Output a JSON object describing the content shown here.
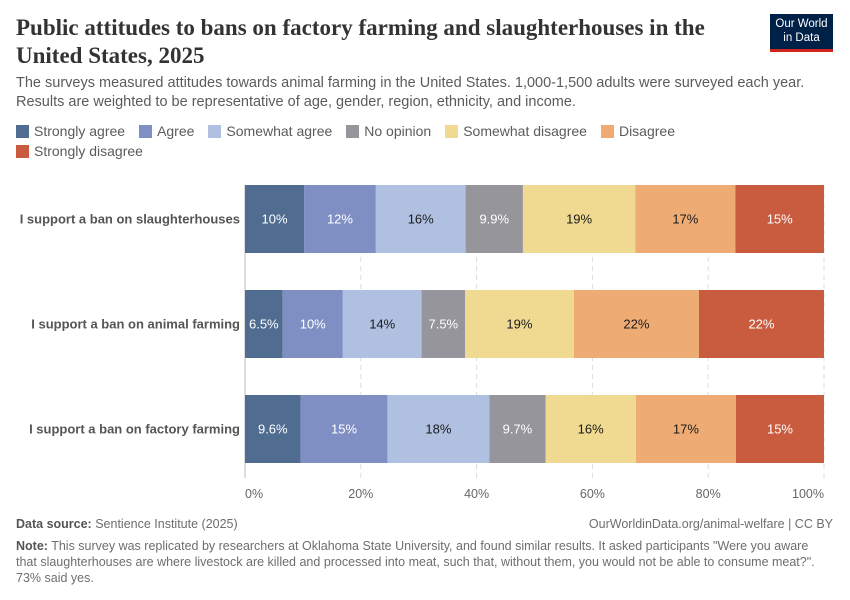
{
  "title": "Public attitudes to bans on factory farming and slaughterhouses in the United States, 2025",
  "subtitle": "The surveys measured attitudes towards animal farming in the United States. 1,000-1,500 adults were surveyed each year. Results are weighted to be representative of age, gender, region, ethnicity, and income.",
  "logo": {
    "line1": "Our World",
    "line2": "in Data"
  },
  "footer": {
    "source_label": "Data source:",
    "source": "Sentience Institute (2025)",
    "license": "OurWorldinData.org/animal-welfare | CC BY",
    "note_label": "Note:",
    "note": "This survey was replicated by researchers at Oklahoma State University, and found similar results. It asked participants \"Were you aware that slaughterhouses are where livestock are killed and processed into meat, such that, without them, you would not be able to consume meat?\". 73% said yes."
  },
  "chart_data": {
    "type": "bar",
    "orientation": "horizontal",
    "stacked": true,
    "xlim": [
      0,
      100
    ],
    "xticks": [
      "0%",
      "20%",
      "40%",
      "60%",
      "80%",
      "100%"
    ],
    "grid": "vertical dashed",
    "legend_placement": "top",
    "categories": [
      "I support a ban on slaughterhouses",
      "I support a ban on animal farming",
      "I support a ban on factory farming"
    ],
    "series": [
      {
        "name": "Strongly agree",
        "color": "#506d91",
        "label_color": "#ffffff",
        "values": [
          10.2,
          6.5,
          9.6
        ],
        "labels": [
          "10%",
          "6.5%",
          "9.6%"
        ]
      },
      {
        "name": "Agree",
        "color": "#7f8fc4",
        "label_color": "#ffffff",
        "values": [
          12.4,
          10.4,
          15.0
        ],
        "labels": [
          "12%",
          "10%",
          "15%"
        ]
      },
      {
        "name": "Somewhat agree",
        "color": "#b0c0e0",
        "label_color": "#1a1a1a",
        "values": [
          15.5,
          13.6,
          17.6
        ],
        "labels": [
          "16%",
          "14%",
          "18%"
        ]
      },
      {
        "name": "No opinion",
        "color": "#96959b",
        "label_color": "#ffffff",
        "values": [
          9.9,
          7.5,
          9.7
        ],
        "labels": [
          "9.9%",
          "7.5%",
          "9.7%"
        ]
      },
      {
        "name": "Somewhat disagree",
        "color": "#f0da91",
        "label_color": "#1a1a1a",
        "values": [
          19.4,
          18.8,
          15.6
        ],
        "labels": [
          "19%",
          "19%",
          "16%"
        ]
      },
      {
        "name": "Disagree",
        "color": "#eeac74",
        "label_color": "#1a1a1a",
        "values": [
          17.3,
          21.6,
          17.3
        ],
        "labels": [
          "17%",
          "22%",
          "17%"
        ]
      },
      {
        "name": "Strongly disagree",
        "color": "#c95c3f",
        "label_color": "#ffffff",
        "values": [
          15.3,
          21.6,
          15.2
        ],
        "labels": [
          "15%",
          "22%",
          "15%"
        ]
      }
    ]
  }
}
